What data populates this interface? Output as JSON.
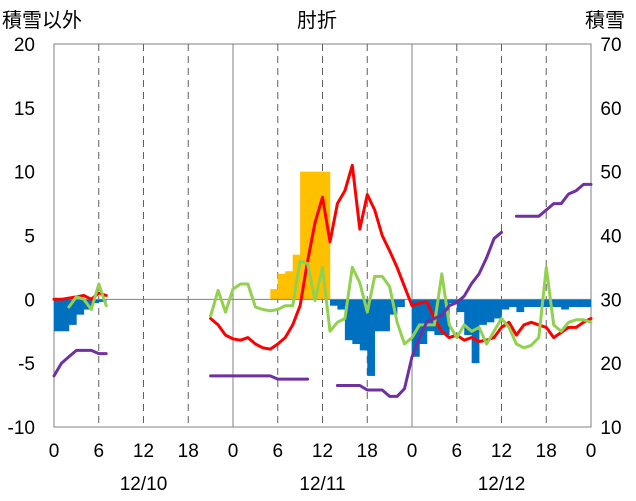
{
  "chart_data": {
    "type": "bar+line",
    "title": "肘折",
    "left_axis_label": "積雪以外",
    "right_axis_label": "積雪",
    "left_axis": {
      "min": -10,
      "max": 20,
      "ticks": [
        "-10",
        "-5",
        "0",
        "5",
        "10",
        "15",
        "20"
      ]
    },
    "right_axis": {
      "min": 10,
      "max": 70,
      "ticks": [
        "10",
        "20",
        "30",
        "40",
        "50",
        "60",
        "70"
      ]
    },
    "x_hour_ticks": [
      "0",
      "6",
      "12",
      "18",
      "0",
      "6",
      "12",
      "18",
      "0",
      "6",
      "12",
      "18",
      "0"
    ],
    "x_day_labels": [
      "12/10",
      "12/11",
      "12/12"
    ],
    "x_range_hours": [
      0,
      72
    ],
    "gridlines": "vertical dashed every 6 h, solid at day boundaries",
    "series": [
      {
        "kind": "bar",
        "axis": "left",
        "color": "#FFC000",
        "points": [
          [
            29.5,
            0.8
          ],
          [
            30.5,
            2.0
          ],
          [
            31.5,
            2.2
          ],
          [
            32.5,
            3.5
          ],
          [
            33.5,
            10
          ],
          [
            34.5,
            10
          ],
          [
            35.5,
            10
          ],
          [
            36.5,
            10
          ]
        ]
      },
      {
        "kind": "bar",
        "axis": "left",
        "color": "#0070C0",
        "points": [
          [
            0.5,
            -2.5
          ],
          [
            1.5,
            -2.5
          ],
          [
            2.5,
            -2.0
          ],
          [
            3.5,
            -1.2
          ],
          [
            4.5,
            -0.8
          ],
          [
            5.5,
            -0.3
          ],
          [
            6.5,
            -0.2
          ],
          [
            37.5,
            -0.5
          ],
          [
            38.5,
            -0.8
          ],
          [
            39.5,
            -3.2
          ],
          [
            40.5,
            -3.5
          ],
          [
            41.5,
            -4.0
          ],
          [
            42.5,
            -6.0
          ],
          [
            43.5,
            -2.5
          ],
          [
            44.5,
            -2.5
          ],
          [
            45.5,
            -1.2
          ],
          [
            46.5,
            -0.6
          ],
          [
            48.5,
            -4.5
          ],
          [
            49.5,
            -3.5
          ],
          [
            50.5,
            -2.5
          ],
          [
            51.5,
            -2.8
          ],
          [
            52.5,
            -2.8
          ],
          [
            53.5,
            -0.3
          ],
          [
            54.5,
            -1.0
          ],
          [
            55.5,
            -2.8
          ],
          [
            56.5,
            -5.0
          ],
          [
            57.5,
            -2.0
          ],
          [
            58.5,
            -1.8
          ],
          [
            59.5,
            -1.5
          ],
          [
            60.5,
            -0.8
          ],
          [
            61.5,
            -0.6
          ],
          [
            62.5,
            -1.0
          ],
          [
            63.5,
            -0.6
          ],
          [
            64.5,
            -0.6
          ],
          [
            65.5,
            -0.6
          ],
          [
            66.5,
            -0.6
          ],
          [
            67.5,
            -0.6
          ],
          [
            68.5,
            -0.8
          ],
          [
            69.5,
            -0.6
          ],
          [
            70.5,
            -0.6
          ],
          [
            71.5,
            -0.6
          ]
        ]
      },
      {
        "kind": "line",
        "axis": "left",
        "color": "#FF0000",
        "segments": [
          [
            [
              0,
              0.0
            ],
            [
              1,
              0.0
            ],
            [
              2,
              0.1
            ],
            [
              3,
              0.2
            ],
            [
              4,
              0.3
            ],
            [
              5,
              0.0
            ],
            [
              6,
              0.5
            ],
            [
              7,
              0.3
            ]
          ],
          [
            [
              21,
              -1.5
            ],
            [
              22,
              -2.0
            ],
            [
              23,
              -2.8
            ],
            [
              24,
              -3.1
            ],
            [
              25,
              -3.2
            ],
            [
              26,
              -3.0
            ],
            [
              27,
              -3.5
            ],
            [
              28,
              -3.8
            ],
            [
              29,
              -3.9
            ],
            [
              30,
              -3.5
            ],
            [
              31,
              -3.0
            ],
            [
              32,
              -2.0
            ],
            [
              33,
              -0.5
            ],
            [
              34,
              3.0
            ],
            [
              35,
              6.0
            ],
            [
              36,
              8.0
            ],
            [
              37,
              4.5
            ],
            [
              38,
              7.5
            ],
            [
              39,
              8.5
            ],
            [
              40,
              10.5
            ],
            [
              41,
              5.5
            ],
            [
              42,
              8.2
            ],
            [
              43,
              7.0
            ],
            [
              44,
              5.0
            ],
            [
              45,
              3.8
            ],
            [
              46,
              2.5
            ],
            [
              47,
              1.0
            ],
            [
              48,
              -0.5
            ],
            [
              49,
              -0.3
            ],
            [
              50,
              -0.2
            ],
            [
              51,
              -1.5
            ],
            [
              52,
              -2.5
            ],
            [
              53,
              -3.0
            ],
            [
              54,
              -2.8
            ],
            [
              55,
              -3.2
            ],
            [
              56,
              -3.0
            ],
            [
              57,
              -3.3
            ],
            [
              58,
              -3.2
            ],
            [
              59,
              -3.0
            ],
            [
              60,
              -2.2
            ],
            [
              61,
              -1.8
            ],
            [
              62,
              -2.8
            ],
            [
              63,
              -2.0
            ],
            [
              64,
              -1.8
            ],
            [
              65,
              -2.0
            ],
            [
              66,
              -2.2
            ],
            [
              67,
              -3.0
            ],
            [
              68,
              -2.6
            ],
            [
              69,
              -2.2
            ],
            [
              70,
              -2.2
            ],
            [
              71,
              -1.8
            ],
            [
              72,
              -1.5
            ]
          ]
        ]
      },
      {
        "kind": "line",
        "axis": "left",
        "color": "#92D050",
        "segments": [
          [
            [
              2,
              -0.6
            ],
            [
              3,
              0.2
            ],
            [
              4,
              0.0
            ],
            [
              5,
              -0.8
            ],
            [
              6,
              1.2
            ],
            [
              7,
              -0.5
            ]
          ],
          [
            [
              21,
              -1.3
            ],
            [
              22,
              0.7
            ],
            [
              23,
              -1.0
            ],
            [
              24,
              0.8
            ],
            [
              25,
              1.2
            ],
            [
              26,
              1.2
            ],
            [
              27,
              -0.6
            ],
            [
              28,
              -0.8
            ],
            [
              29,
              -0.9
            ],
            [
              30,
              -0.8
            ],
            [
              31,
              -0.5
            ],
            [
              32,
              -0.5
            ],
            [
              33,
              3.0
            ],
            [
              34,
              2.8
            ],
            [
              35,
              -0.1
            ],
            [
              36,
              2.5
            ],
            [
              37,
              -2.5
            ],
            [
              38,
              -1.8
            ],
            [
              39,
              -1.5
            ],
            [
              40,
              2.5
            ],
            [
              41,
              1.3
            ],
            [
              42,
              -1.0
            ],
            [
              43,
              1.8
            ],
            [
              44,
              1.8
            ],
            [
              45,
              1.0
            ],
            [
              46,
              -1.8
            ],
            [
              47,
              -3.5
            ],
            [
              48,
              -3.0
            ],
            [
              49,
              -2.0
            ],
            [
              50,
              -2.0
            ],
            [
              51,
              -2.0
            ],
            [
              52,
              2.0
            ],
            [
              53,
              -2.0
            ],
            [
              54,
              -3.0
            ],
            [
              55,
              -2.0
            ],
            [
              56,
              -2.5
            ],
            [
              57,
              -2.2
            ],
            [
              58,
              -3.5
            ],
            [
              59,
              -2.5
            ],
            [
              60,
              -1.5
            ],
            [
              61,
              -2.2
            ],
            [
              62,
              -3.5
            ],
            [
              63,
              -3.8
            ],
            [
              64,
              -3.6
            ],
            [
              65,
              -3.0
            ],
            [
              66,
              2.5
            ],
            [
              67,
              -2.0
            ],
            [
              68,
              -2.5
            ],
            [
              69,
              -1.8
            ],
            [
              70,
              -1.6
            ],
            [
              71,
              -1.6
            ],
            [
              72,
              -1.8
            ]
          ]
        ]
      },
      {
        "kind": "line",
        "axis": "right",
        "color": "#7030A0",
        "segments": [
          [
            [
              0,
              18
            ],
            [
              1,
              20
            ],
            [
              2,
              21
            ],
            [
              3,
              22
            ],
            [
              4,
              22
            ],
            [
              5,
              22
            ],
            [
              6,
              21.5
            ],
            [
              7,
              21.5
            ]
          ],
          [
            [
              21,
              18
            ],
            [
              29,
              18
            ],
            [
              30,
              17.5
            ],
            [
              34,
              17.5
            ]
          ],
          [
            [
              38,
              16.5
            ],
            [
              41,
              16.5
            ],
            [
              42,
              15.8
            ],
            [
              44,
              15.8
            ],
            [
              45,
              14.8
            ],
            [
              46,
              14.8
            ],
            [
              47,
              16.0
            ],
            [
              48,
              21.0
            ],
            [
              49,
              24.0
            ],
            [
              50,
              26.5
            ],
            [
              51,
              27.0
            ],
            [
              52,
              27.5
            ],
            [
              53,
              29.0
            ],
            [
              54,
              29.5
            ],
            [
              55,
              30.5
            ],
            [
              56,
              32.5
            ],
            [
              57,
              34.0
            ],
            [
              58,
              36.5
            ],
            [
              59,
              39.5
            ],
            [
              60,
              40.5
            ]
          ],
          [
            [
              62,
              43
            ],
            [
              65,
              43
            ],
            [
              66,
              44
            ],
            [
              67,
              45
            ],
            [
              68,
              45
            ],
            [
              69,
              46.5
            ],
            [
              70,
              47
            ],
            [
              71,
              48
            ],
            [
              72,
              48
            ]
          ]
        ]
      }
    ]
  }
}
